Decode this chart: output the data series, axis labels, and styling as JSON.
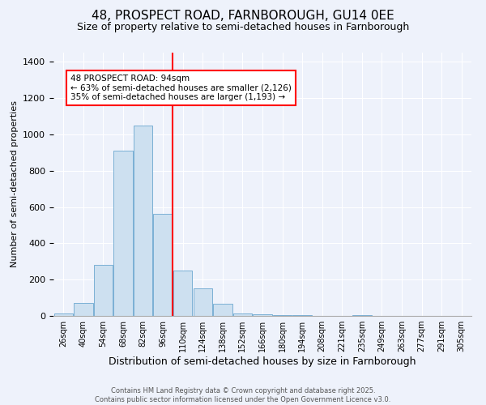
{
  "title": "48, PROSPECT ROAD, FARNBOROUGH, GU14 0EE",
  "subtitle": "Size of property relative to semi-detached houses in Farnborough",
  "xlabel": "Distribution of semi-detached houses by size in Farnborough",
  "ylabel": "Number of semi-detached properties",
  "categories": [
    "26sqm",
    "40sqm",
    "54sqm",
    "68sqm",
    "82sqm",
    "96sqm",
    "110sqm",
    "124sqm",
    "138sqm",
    "152sqm",
    "166sqm",
    "180sqm",
    "194sqm",
    "208sqm",
    "221sqm",
    "235sqm",
    "249sqm",
    "263sqm",
    "277sqm",
    "291sqm",
    "305sqm"
  ],
  "values": [
    15,
    70,
    280,
    910,
    1050,
    560,
    250,
    150,
    65,
    15,
    10,
    5,
    5,
    0,
    0,
    5,
    0,
    0,
    0,
    0,
    0
  ],
  "bar_color": "#cde0f0",
  "bar_edgecolor": "#7ab0d4",
  "vline_x": 5.5,
  "vline_color": "red",
  "annotation_text": "48 PROSPECT ROAD: 94sqm\n← 63% of semi-detached houses are smaller (2,126)\n35% of semi-detached houses are larger (1,193) →",
  "ylim": [
    0,
    1450
  ],
  "background_color": "#eef2fb",
  "footer": "Contains HM Land Registry data © Crown copyright and database right 2025.\nContains public sector information licensed under the Open Government Licence v3.0.",
  "title_fontsize": 11,
  "subtitle_fontsize": 9,
  "ylabel_fontsize": 8,
  "xlabel_fontsize": 9,
  "footer_fontsize": 6,
  "tick_fontsize": 7,
  "ytick_fontsize": 8,
  "ann_fontsize": 7.5
}
